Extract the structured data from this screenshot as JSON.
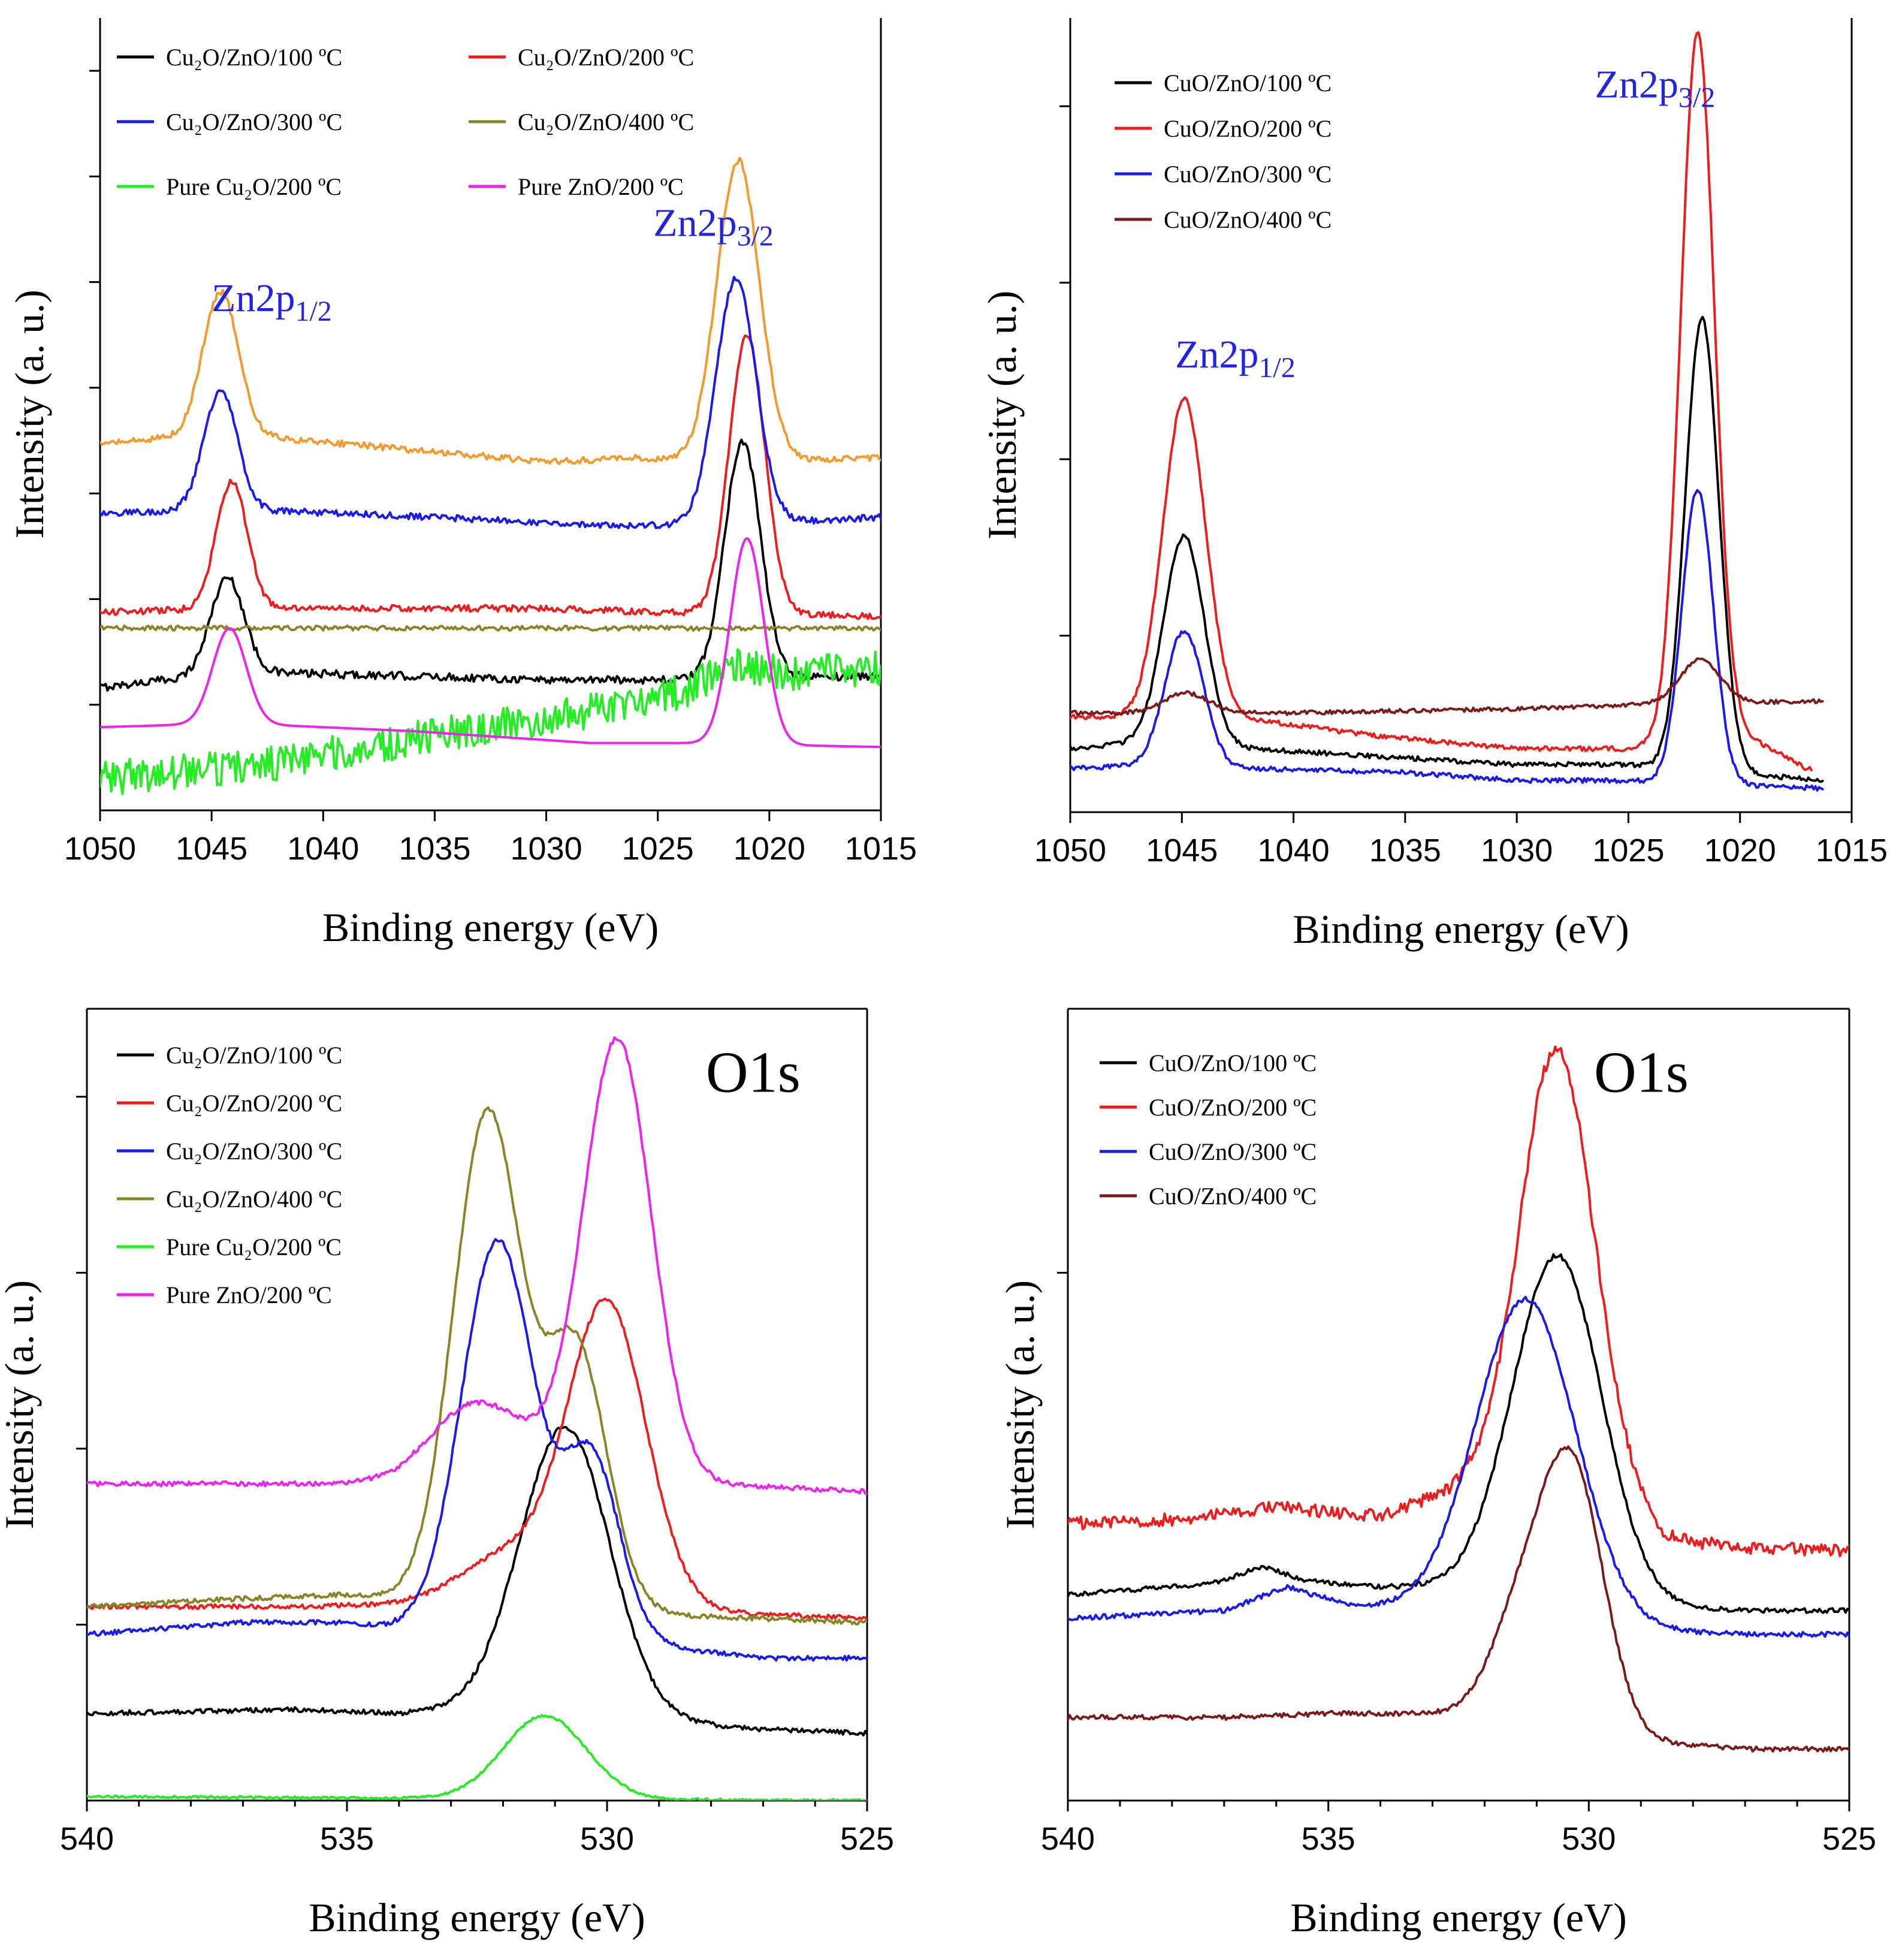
{
  "figure": {
    "panels": [
      "top-left",
      "top-right",
      "bottom-left",
      "bottom-right"
    ]
  },
  "chart_data": [
    {
      "id": "p1",
      "type": "line",
      "xlabel": "Binding energy (eV)",
      "ylabel": "Intensity (a. u.)",
      "xlim": [
        1050,
        1015
      ],
      "xticks": [
        "1050",
        "1045",
        "1040",
        "1035",
        "1030",
        "1025",
        "1020",
        "1015"
      ],
      "ylim": [
        0,
        100
      ],
      "legend_position": "top-left",
      "annotations": [
        {
          "text": "Zn2p",
          "sub": "1/2",
          "x": 1045,
          "y": 63,
          "color": "#2323e6"
        },
        {
          "text": "Zn2p",
          "sub": "3/2",
          "x": 1025.2,
          "y": 72.5,
          "color": "#2323e6"
        }
      ],
      "series": [
        {
          "name": "Cu₂O/ZnO/100 ºC",
          "color": "#000000",
          "noise": 0.5,
          "baseline": [
            [
              1050,
              15.5
            ],
            [
              1044,
              17.5
            ],
            [
              1030,
              16.5
            ],
            [
              1024,
              16.5
            ],
            [
              1015,
              17
            ]
          ],
          "peaks": [
            [
              1044.3,
              12,
              0.75
            ],
            [
              1021.2,
              30,
              0.8
            ]
          ]
        },
        {
          "name": "Cu₂O/ZnO/200 ºC",
          "color": "#ee1c1c",
          "noise": 0.4,
          "baseline": [
            [
              1050,
              25
            ],
            [
              1044,
              25.5
            ],
            [
              1030,
              25.5
            ],
            [
              1025,
              25
            ],
            [
              1015,
              24.5
            ]
          ],
          "peaks": [
            [
              1044.1,
              16,
              0.7
            ],
            [
              1021.0,
              35,
              0.8
            ]
          ]
        },
        {
          "name": "Cu₂O/ZnO/300 ºC",
          "color": "#1a1aee",
          "noise": 0.4,
          "baseline": [
            [
              1050,
              37.5
            ],
            [
              1044,
              38
            ],
            [
              1035,
              37
            ],
            [
              1028,
              36
            ],
            [
              1022,
              36
            ],
            [
              1015,
              37
            ]
          ],
          "peaks": [
            [
              1044.6,
              15,
              0.75
            ],
            [
              1021.5,
              31,
              0.9
            ]
          ]
        },
        {
          "name": "Cu₂O/ZnO/400 ºC",
          "color": "#868626",
          "noise": 0.3,
          "baseline": [
            [
              1050,
              23
            ],
            [
              1030,
              23
            ],
            [
              1015,
              23
            ]
          ],
          "peaks": []
        },
        {
          "name": "Pure Cu₂O/200 ºC",
          "color": "#22ee22",
          "noise": 2.2,
          "baseline": [
            [
              1050,
              4
            ],
            [
              1046,
              5
            ],
            [
              1042,
              6
            ],
            [
              1038,
              8
            ],
            [
              1034,
              10
            ],
            [
              1030,
              11.5
            ],
            [
              1026,
              13.5
            ],
            [
              1022,
              16
            ],
            [
              1018,
              17.5
            ],
            [
              1015,
              18
            ]
          ],
          "peaks": [
            [
              1021.5,
              2,
              1.2
            ]
          ]
        },
        {
          "name": "Pure ZnO/200 ºC",
          "color": "#ee22ee",
          "noise": 0,
          "baseline": [
            [
              1050,
              10.5
            ],
            [
              1044,
              11
            ],
            [
              1036,
              10
            ],
            [
              1028,
              8.5
            ],
            [
              1024,
              8.5
            ],
            [
              1015,
              8
            ]
          ],
          "peaks": [
            [
              1044.2,
              12,
              0.75
            ],
            [
              1021.0,
              26,
              0.75
            ]
          ]
        },
        {
          "name": "orange (unlabelled)",
          "color": "#f39a2e",
          "noise": 0.4,
          "in_legend": false,
          "baseline": [
            [
              1050,
              46.5
            ],
            [
              1044,
              47.5
            ],
            [
              1036,
              45.5
            ],
            [
              1030,
              44
            ],
            [
              1026,
              44.5
            ],
            [
              1022,
              44
            ],
            [
              1015,
              44.5
            ]
          ],
          "peaks": [
            [
              1044.6,
              18,
              0.8
            ],
            [
              1021.4,
              38,
              0.95
            ]
          ]
        }
      ]
    },
    {
      "id": "p2",
      "type": "line",
      "xlabel": "Binding energy (eV)",
      "ylabel": "Intensity (a. u.)",
      "xlim": [
        1050,
        1015
      ],
      "xticks": [
        "1050",
        "1045",
        "1040",
        "1035",
        "1030",
        "1025",
        "1020",
        "1015"
      ],
      "ylim": [
        0,
        100
      ],
      "legend_position": "top-left",
      "annotations": [
        {
          "text": "Zn2p",
          "sub": "1/2",
          "x": 1045.3,
          "y": 56,
          "color": "#2323e6"
        },
        {
          "text": "Zn2p",
          "sub": "3/2",
          "x": 1026.5,
          "y": 90,
          "color": "#2323e6"
        }
      ],
      "series": [
        {
          "name": "CuO/ZnO/100 ºC",
          "color": "#000000",
          "noise": 0.3,
          "baseline": [
            [
              1050,
              8
            ],
            [
              1046,
              9
            ],
            [
              1042,
              8
            ],
            [
              1036,
              7
            ],
            [
              1030,
              6
            ],
            [
              1025,
              6
            ],
            [
              1016.3,
              4
            ]
          ],
          "peaks": [
            [
              1044.9,
              26,
              0.9
            ],
            [
              1021.7,
              57,
              0.75
            ]
          ]
        },
        {
          "name": "CuO/ZnO/200 ºC",
          "color": "#ee1c1c",
          "noise": 0.3,
          "baseline": [
            [
              1050,
              12
            ],
            [
              1047,
              12
            ],
            [
              1043,
              12
            ],
            [
              1040,
              11
            ],
            [
              1036,
              9.5
            ],
            [
              1030,
              8
            ],
            [
              1025,
              8
            ],
            [
              1023,
              9
            ],
            [
              1020,
              10
            ],
            [
              1017,
              5.5
            ],
            [
              1016.8,
              5.5
            ]
          ],
          "peaks": [
            [
              1044.9,
              40,
              0.95
            ],
            [
              1021.9,
              89,
              0.75
            ]
          ]
        },
        {
          "name": "CuO/ZnO/300 ºC",
          "color": "#1a1aee",
          "noise": 0.3,
          "baseline": [
            [
              1050,
              5.5
            ],
            [
              1046,
              6
            ],
            [
              1042,
              5.5
            ],
            [
              1035,
              5
            ],
            [
              1030,
              4
            ],
            [
              1025,
              4
            ],
            [
              1016.3,
              3
            ]
          ],
          "peaks": [
            [
              1044.9,
              17,
              0.85
            ],
            [
              1021.9,
              37,
              0.7
            ]
          ]
        },
        {
          "name": "CuO/ZnO/400 ºC",
          "color": "#7a1a1a",
          "noise": 0.25,
          "baseline": [
            [
              1050,
              12.5
            ],
            [
              1040,
              12.5
            ],
            [
              1030,
              13
            ],
            [
              1025,
              13.5
            ],
            [
              1016.3,
              14
            ]
          ],
          "peaks": [
            [
              1044.8,
              2.5,
              1.0
            ],
            [
              1021.8,
              5.5,
              0.9
            ]
          ]
        }
      ]
    },
    {
      "id": "p3",
      "type": "line",
      "xlabel": "Binding energy (eV)",
      "ylabel": "Intensity (a. u.)",
      "xlim": [
        540,
        525
      ],
      "xticks": [
        "540",
        "535",
        "530",
        "525"
      ],
      "ylim": [
        0,
        100
      ],
      "legend_position": "top-left",
      "annotations": [
        {
          "text": "O1s",
          "x": 528.1,
          "y": 89.5,
          "color": "#000000",
          "big": true
        }
      ],
      "series": [
        {
          "name": "Cu₂O/ZnO/100 ºC",
          "color": "#000000",
          "noise": 0.3,
          "baseline": [
            [
              540,
              11
            ],
            [
              536,
              11.5
            ],
            [
              534,
              11
            ],
            [
              532,
              12
            ],
            [
              529,
              10
            ],
            [
              527,
              9
            ],
            [
              525,
              8.5
            ]
          ],
          "peaks": [
            [
              530.8,
              36,
              0.85
            ]
          ]
        },
        {
          "name": "Cu₂O/ZnO/200 ºC",
          "color": "#ee1c1c",
          "noise": 0.3,
          "baseline": [
            [
              540,
              24.5
            ],
            [
              536,
              24.5
            ],
            [
              533,
              25
            ],
            [
              531,
              25
            ],
            [
              527,
              23.5
            ],
            [
              525,
              23
            ]
          ],
          "peaks": [
            [
              531.9,
              6,
              0.9
            ],
            [
              530.0,
              38,
              0.75
            ]
          ]
        },
        {
          "name": "Cu₂O/ZnO/300 ºC",
          "color": "#1a1aee",
          "noise": 0.3,
          "baseline": [
            [
              540,
              21
            ],
            [
              537,
              22.5
            ],
            [
              535,
              22.5
            ],
            [
              533,
              21
            ],
            [
              529,
              19.5
            ],
            [
              527,
              18
            ],
            [
              525,
              18
            ]
          ],
          "peaks": [
            [
              532.1,
              50,
              0.7
            ],
            [
              530.3,
              23,
              0.55
            ]
          ]
        },
        {
          "name": "Cu₂O/ZnO/400 ºC",
          "color": "#868626",
          "noise": 0.3,
          "baseline": [
            [
              540,
              24.5
            ],
            [
              537,
              25.5
            ],
            [
              535,
              26
            ],
            [
              533,
              25
            ],
            [
              529,
              23.5
            ],
            [
              525,
              22.5
            ]
          ],
          "peaks": [
            [
              532.3,
              62,
              0.65
            ],
            [
              530.6,
              33,
              0.6
            ]
          ]
        },
        {
          "name": "Pure Cu₂O/200 ºC",
          "color": "#22ee22",
          "noise": 0.15,
          "baseline": [
            [
              540,
              0.5
            ],
            [
              525,
              0
            ]
          ],
          "peaks": [
            [
              531.2,
              10.5,
              0.8
            ]
          ]
        },
        {
          "name": "Pure ZnO/200 ºC",
          "color": "#ee22ee",
          "noise": 0.3,
          "baseline": [
            [
              540,
              40
            ],
            [
              536,
              40
            ],
            [
              534,
              40
            ],
            [
              533,
              41
            ],
            [
              531,
              42
            ],
            [
              528,
              40
            ],
            [
              525,
              39
            ]
          ],
          "peaks": [
            [
              532.5,
              9,
              0.9
            ],
            [
              529.8,
              55,
              0.65
            ]
          ]
        }
      ]
    },
    {
      "id": "p4",
      "type": "line",
      "xlabel": "Binding energy (eV)",
      "ylabel": "Intensity (a. u.)",
      "xlim": [
        540,
        525
      ],
      "xticks": [
        "540",
        "535",
        "530",
        "525"
      ],
      "ylim": [
        0,
        100
      ],
      "legend_position": "top-left",
      "annotations": [
        {
          "text": "O1s",
          "x": 529.9,
          "y": 89.5,
          "color": "#000000",
          "big": true
        }
      ],
      "series": [
        {
          "name": "CuO/ZnO/100 ºC",
          "color": "#000000",
          "noise": 0.3,
          "baseline": [
            [
              540,
              26
            ],
            [
              536,
              28
            ],
            [
              534,
              27
            ],
            [
              532,
              27
            ],
            [
              529,
              24.5
            ],
            [
              527,
              24
            ],
            [
              525,
              24
            ]
          ],
          "peaks": [
            [
              536.3,
              1.5,
              0.4
            ],
            [
              530.6,
              43,
              0.85
            ]
          ]
        },
        {
          "name": "CuO/ZnO/200 ºC",
          "color": "#ee1c1c",
          "noise": 0.8,
          "baseline": [
            [
              540,
              35
            ],
            [
              538,
              35.5
            ],
            [
              536,
              37
            ],
            [
              534,
              36
            ],
            [
              532.2,
              40
            ],
            [
              531,
              42
            ],
            [
              529.5,
              38
            ],
            [
              528.5,
              33
            ],
            [
              527,
              32
            ],
            [
              525,
              31.5
            ]
          ],
          "peaks": [
            [
              530.6,
              54,
              0.7
            ]
          ]
        },
        {
          "name": "CuO/ZnO/300 ºC",
          "color": "#1a1aee",
          "noise": 0.3,
          "baseline": [
            [
              540,
              23
            ],
            [
              537,
              24
            ],
            [
              535.8,
              27
            ],
            [
              534.5,
              24.5
            ],
            [
              532,
              24
            ],
            [
              529,
              21.5
            ],
            [
              527,
              21
            ],
            [
              525,
              21
            ]
          ],
          "peaks": [
            [
              531.2,
              40,
              0.95
            ]
          ]
        },
        {
          "name": "CuO/ZnO/400 ºC",
          "color": "#7a1a1a",
          "noise": 0.3,
          "baseline": [
            [
              540,
              10.5
            ],
            [
              537,
              10.5
            ],
            [
              535,
              11
            ],
            [
              533,
              11
            ],
            [
              529,
              7.5
            ],
            [
              527,
              6.5
            ],
            [
              525,
              6.5
            ]
          ],
          "peaks": [
            [
              531.3,
              13,
              0.6
            ],
            [
              530.3,
              32,
              0.6
            ]
          ]
        }
      ]
    }
  ]
}
